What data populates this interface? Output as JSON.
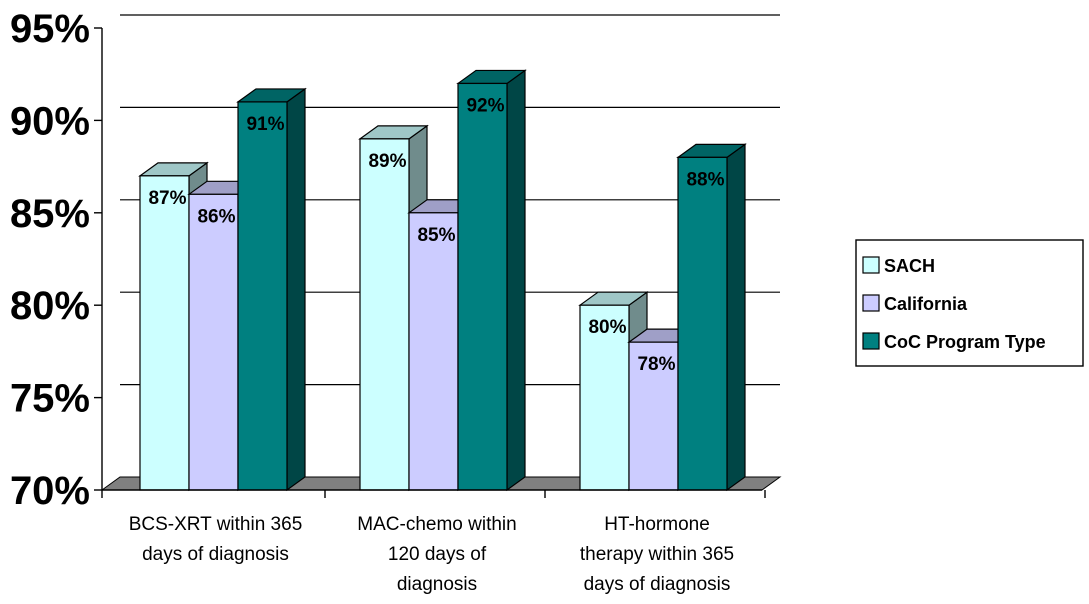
{
  "chart_data": {
    "type": "bar",
    "title": "",
    "xlabel": "",
    "ylabel": "",
    "categories": [
      [
        "BCS-XRT within 365",
        "days of diagnosis"
      ],
      [
        "MAC-chemo within",
        "120 days of",
        "diagnosis"
      ],
      [
        "HT-hormone",
        "therapy within 365",
        "days of diagnosis"
      ]
    ],
    "series": [
      {
        "name": "SACH",
        "values": [
          87,
          89,
          80
        ],
        "labels": [
          "87%",
          "89%",
          "80%"
        ],
        "color": "#ccffff"
      },
      {
        "name": "California",
        "values": [
          86,
          85,
          78
        ],
        "labels": [
          "86%",
          "85%",
          "78%"
        ],
        "color": "#ccccff"
      },
      {
        "name": "CoC Program Type",
        "values": [
          91,
          92,
          88
        ],
        "labels": [
          "91%",
          "92%",
          "88%"
        ],
        "color": "#008080"
      }
    ],
    "ylim": [
      70,
      95
    ],
    "yticks": [
      70,
      75,
      80,
      85,
      90,
      95
    ],
    "ytick_labels": [
      "70%",
      "75%",
      "80%",
      "85%",
      "90%",
      "95%"
    ],
    "grid": true,
    "legend": "right",
    "style": "3d-clustered-column"
  }
}
